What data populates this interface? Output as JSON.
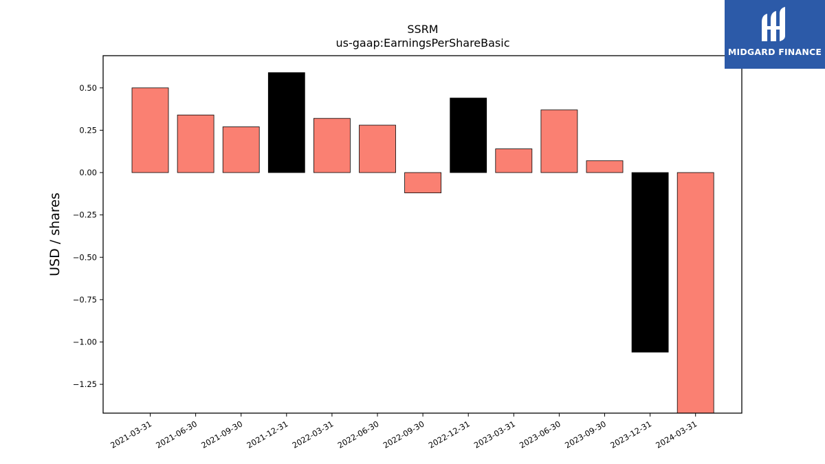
{
  "chart_data": {
    "type": "bar",
    "title": "SSRM",
    "subtitle": "us-gaap:EarningsPerShareBasic",
    "xlabel": "",
    "ylabel": "USD / shares",
    "categories": [
      "2021-03-31",
      "2021-06-30",
      "2021-09-30",
      "2021-12-31",
      "2022-03-31",
      "2022-06-30",
      "2022-09-30",
      "2022-12-31",
      "2023-03-31",
      "2023-06-30",
      "2023-09-30",
      "2023-12-31",
      "2024-03-31"
    ],
    "values": [
      0.5,
      0.34,
      0.27,
      0.59,
      0.32,
      0.28,
      -0.12,
      0.44,
      0.14,
      0.37,
      0.07,
      -1.06,
      -1.42
    ],
    "highlight": [
      false,
      false,
      false,
      true,
      false,
      false,
      false,
      true,
      false,
      false,
      false,
      true,
      false
    ],
    "ylim": [
      -1.42,
      0.69
    ],
    "yticks": [
      0.5,
      0.25,
      0.0,
      -0.25,
      -0.5,
      -0.75,
      -1.0,
      -1.25
    ],
    "ytick_labels": [
      "0.50",
      "0.25",
      "0.00",
      "−0.25",
      "−0.50",
      "−0.75",
      "−1.00",
      "−1.25"
    ],
    "grid": false,
    "colors": {
      "bar": "#fa8072",
      "highlight": "#000000",
      "edge": "#000000"
    }
  },
  "logo": {
    "text": "MIDGARD FINANCE",
    "bg": "#2c5aa8"
  }
}
